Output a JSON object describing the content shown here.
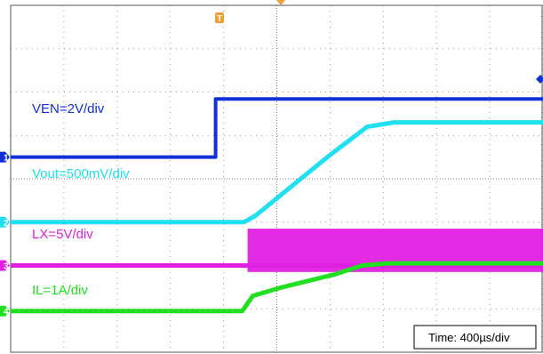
{
  "chart_data": {
    "type": "line",
    "title": "",
    "timebase": "Time: 400µs/div",
    "x_unit": "div",
    "x_range": [
      0,
      10
    ],
    "y_unit": "div",
    "y_range": [
      0,
      8
    ],
    "grid": true,
    "trigger_marker": "T",
    "series": [
      {
        "name": "VEN=2V/div",
        "channel": "1",
        "color": "#1030d8",
        "scale": "2V/div",
        "points": [
          [
            0,
            4.5
          ],
          [
            3.85,
            4.5
          ],
          [
            3.85,
            5.84
          ],
          [
            10,
            5.84
          ]
        ]
      },
      {
        "name": "Vout=500mV/div",
        "channel": "2",
        "color": "#20e0f0",
        "scale": "500mV/div",
        "points": [
          [
            0,
            3.0
          ],
          [
            4.38,
            3.0
          ],
          [
            4.6,
            3.15
          ],
          [
            5.2,
            3.75
          ],
          [
            6.0,
            4.55
          ],
          [
            6.7,
            5.2
          ],
          [
            7.2,
            5.3
          ],
          [
            10,
            5.3
          ]
        ]
      },
      {
        "name": "LX=5V/div",
        "channel": "3",
        "color": "#e020e0",
        "scale": "5V/div",
        "points": [
          [
            0,
            2.0
          ],
          [
            4.45,
            2.0
          ],
          [
            10,
            2.0
          ]
        ],
        "switching": {
          "start": 4.45,
          "end": 10,
          "low": 1.85,
          "high": 2.85
        }
      },
      {
        "name": "IL=1A/div",
        "channel": "4",
        "color": "#20e020",
        "scale": "1A/div",
        "points": [
          [
            0,
            0.95
          ],
          [
            4.35,
            0.95
          ],
          [
            4.55,
            1.3
          ],
          [
            5.1,
            1.5
          ],
          [
            6.1,
            1.8
          ],
          [
            6.6,
            2.0
          ],
          [
            7.1,
            2.05
          ],
          [
            10,
            2.05
          ]
        ]
      }
    ]
  }
}
